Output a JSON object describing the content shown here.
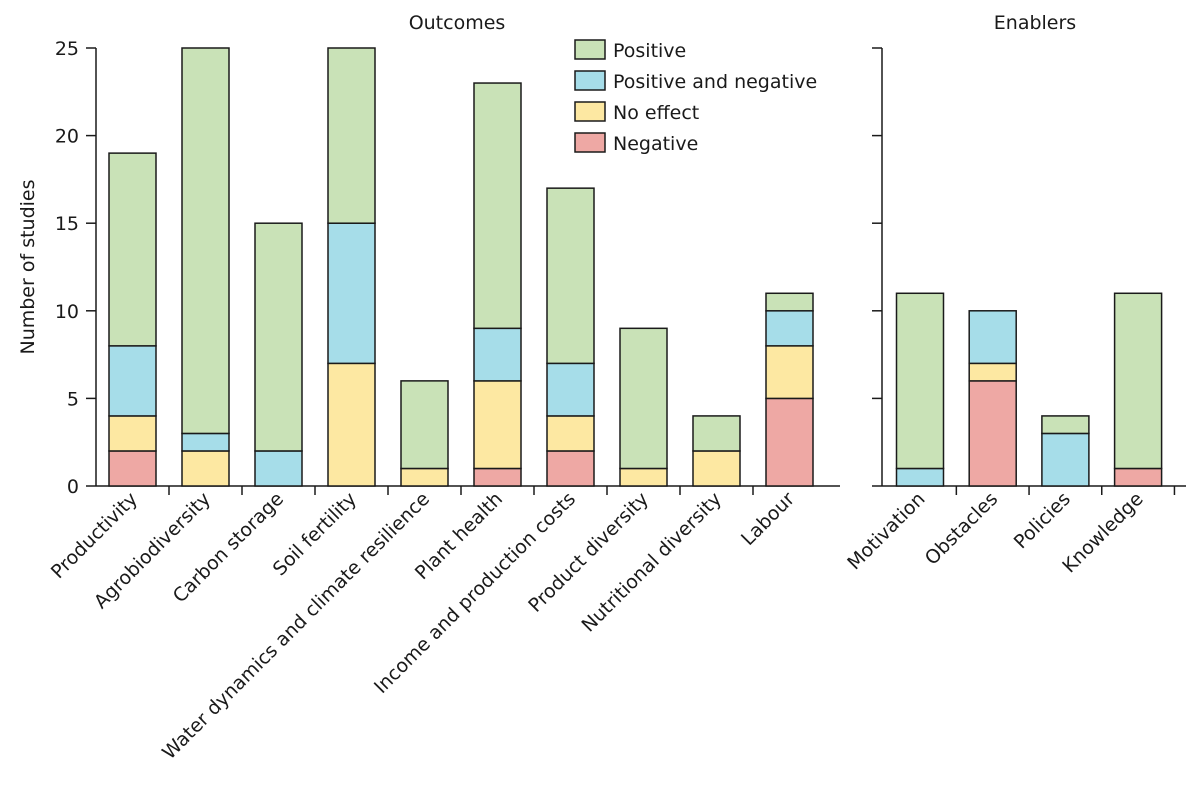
{
  "chart_data": {
    "type": "bar",
    "stacked": true,
    "ylabel": "Number of studies",
    "ylim": [
      0,
      25
    ],
    "yticks": [
      0,
      5,
      10,
      15,
      20,
      25
    ],
    "grid": false,
    "legend_position": "top-right of Outcomes panel",
    "series": [
      {
        "name": "Negative",
        "color": "#eea8a4"
      },
      {
        "name": "No effect",
        "color": "#fde8a2"
      },
      {
        "name": "Positive and negative",
        "color": "#a6dde9"
      },
      {
        "name": "Positive",
        "color": "#c9e2b7"
      }
    ],
    "legend_order": [
      "Positive",
      "Positive and negative",
      "No effect",
      "Negative"
    ],
    "panels": [
      {
        "title": "Outcomes",
        "categories": [
          "Productivity",
          "Agrobiodiversity",
          "Carbon storage",
          "Soil fertility",
          "Water dynamics and climate resilience",
          "Plant health",
          "Income and production costs",
          "Product diversity",
          "Nutritional diversity",
          "Labour"
        ],
        "values": {
          "Negative": [
            2,
            0,
            0,
            0,
            0,
            1,
            2,
            0,
            0,
            5
          ],
          "No effect": [
            2,
            2,
            0,
            7,
            1,
            5,
            2,
            1,
            2,
            3
          ],
          "Positive and negative": [
            4,
            1,
            2,
            8,
            0,
            3,
            3,
            0,
            0,
            2
          ],
          "Positive": [
            11,
            22,
            13,
            10,
            5,
            14,
            10,
            8,
            2,
            1
          ]
        }
      },
      {
        "title": "Enablers",
        "categories": [
          "Motivation",
          "Obstacles",
          "Policies",
          "Knowledge"
        ],
        "values": {
          "Negative": [
            0,
            6,
            0,
            1
          ],
          "No effect": [
            0,
            1,
            0,
            0
          ],
          "Positive and negative": [
            1,
            3,
            3,
            0
          ],
          "Positive": [
            10,
            0,
            1,
            10
          ]
        }
      }
    ]
  }
}
